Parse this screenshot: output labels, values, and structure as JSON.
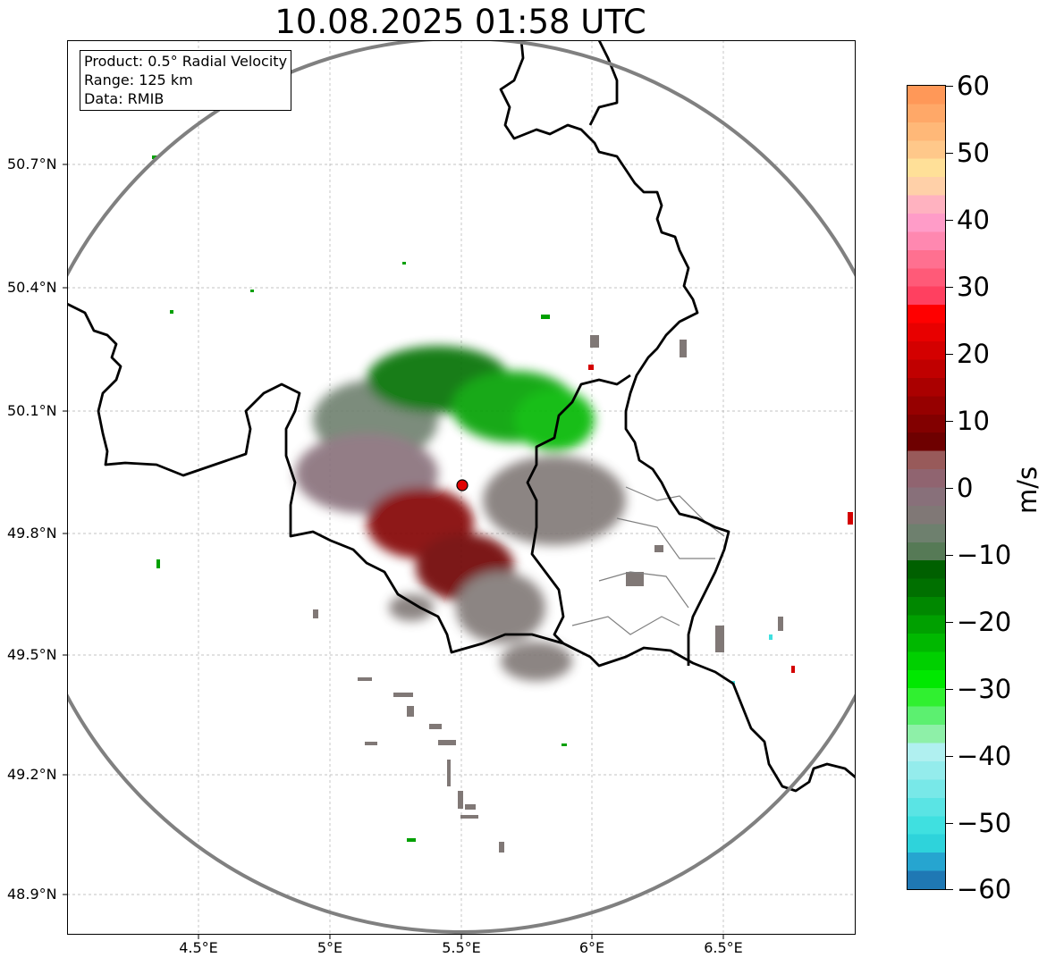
{
  "title": "10.08.2025 01:58 UTC",
  "info": {
    "product": "Product: 0.5° Radial Velocity",
    "range": "Range: 125 km",
    "data": "Data: RMIB"
  },
  "axes": {
    "lat_labels": [
      "50.7°N",
      "50.4°N",
      "50.1°N",
      "49.8°N",
      "49.5°N",
      "49.2°N",
      "48.9°N"
    ],
    "lon_labels": [
      "4.5°E",
      "5°E",
      "5.5°E",
      "6°E",
      "6.5°E"
    ]
  },
  "colorbar": {
    "unit": "m/s",
    "tick_labels": [
      "60",
      "50",
      "40",
      "30",
      "20",
      "10",
      "0",
      "−10",
      "−20",
      "−30",
      "−40",
      "−50",
      "−60"
    ],
    "min": -60,
    "max": 60,
    "colors": [
      "#1f78b4",
      "#26a5d0",
      "#2ed3db",
      "#3fe0e0",
      "#5ae4e4",
      "#78e8e8",
      "#94ecec",
      "#b0f0f0",
      "#8ef0a8",
      "#5cf070",
      "#30f030",
      "#00e800",
      "#00d000",
      "#00b800",
      "#00a000",
      "#008800",
      "#007000",
      "#006000",
      "#567a56",
      "#6e806e",
      "#807876",
      "#88707a",
      "#906470",
      "#985a5a",
      "#6e0000",
      "#820000",
      "#960000",
      "#aa0000",
      "#c00000",
      "#d40000",
      "#e80000",
      "#ff0000",
      "#ff4060",
      "#ff5a78",
      "#ff7090",
      "#ff88b0",
      "#ff9cc8",
      "#ffb2c0",
      "#ffd0a8",
      "#ffe098",
      "#ffc88a",
      "#ffb878",
      "#ffa868",
      "#ff9858"
    ]
  },
  "radar": {
    "site": {
      "lon": 5.505,
      "lat": 49.914
    },
    "range_km": 125
  }
}
